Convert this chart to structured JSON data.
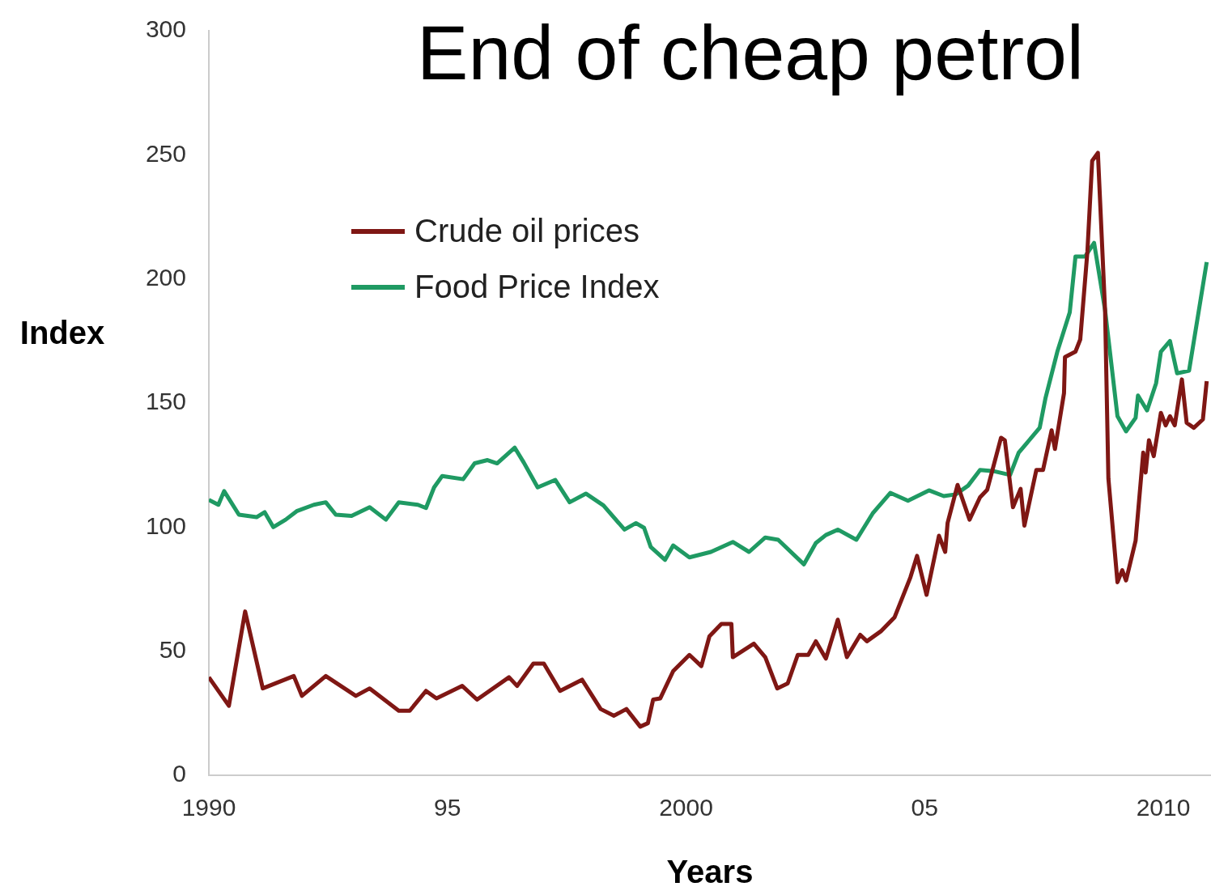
{
  "chart_data": {
    "type": "line",
    "title": "End of cheap petrol",
    "xlabel": "Years",
    "ylabel": "Index",
    "legend": "top left",
    "grid": false,
    "xlim": [
      1990,
      2011
    ],
    "xticks": [
      {
        "value": 1990,
        "label": "1990"
      },
      {
        "value": 1995,
        "label": "95"
      },
      {
        "value": 2000,
        "label": "2000"
      },
      {
        "value": 2005,
        "label": "05"
      },
      {
        "value": 2010,
        "label": "2010"
      }
    ],
    "ylim": [
      0,
      300
    ],
    "yticks": [
      0,
      50,
      100,
      150,
      200,
      250,
      300
    ],
    "series": [
      {
        "name": "Crude oil prices",
        "color": "#7f1714",
        "x": [
          1990.0,
          1990.42,
          1990.76,
          1991.13,
          1991.78,
          1991.95,
          1992.45,
          1993.08,
          1993.37,
          1993.98,
          1994.21,
          1994.55,
          1994.77,
          1995.31,
          1995.62,
          1996.29,
          1996.46,
          1996.8,
          1997.02,
          1997.36,
          1997.82,
          1998.21,
          1998.49,
          1998.75,
          1999.04,
          1999.2,
          1999.31,
          1999.46,
          1999.73,
          2000.07,
          2000.32,
          2000.49,
          2000.74,
          2000.95,
          2000.98,
          2001.42,
          2001.66,
          2001.91,
          2002.13,
          2002.34,
          2002.56,
          2002.72,
          2002.93,
          2003.18,
          2003.37,
          2003.65,
          2003.79,
          2004.08,
          2004.37,
          2004.7,
          2004.84,
          2005.04,
          2005.3,
          2005.43,
          2005.48,
          2005.69,
          2005.94,
          2006.16,
          2006.31,
          2006.6,
          2006.68,
          2006.85,
          2007.01,
          2007.09,
          2007.34,
          2007.48,
          2007.66,
          2007.73,
          2007.92,
          2007.94,
          2008.16,
          2008.26,
          2008.41,
          2008.51,
          2008.63,
          2008.78,
          2008.85,
          2009.04,
          2009.14,
          2009.22,
          2009.42,
          2009.58,
          2009.63,
          2009.7,
          2009.8,
          2009.95,
          2010.05,
          2010.14,
          2010.24,
          2010.39,
          2010.49,
          2010.64,
          2010.83,
          2010.91
        ],
        "values": [
          39.5,
          28,
          66,
          35,
          40,
          32,
          40,
          32,
          35,
          26,
          26,
          34,
          31,
          36,
          30.5,
          39.5,
          36,
          45,
          45,
          34,
          38.5,
          26.7,
          24,
          26.7,
          19.6,
          21,
          30.5,
          31,
          42,
          48.5,
          44,
          56,
          61,
          61,
          47.6,
          53,
          47.6,
          35,
          37,
          48.5,
          48.5,
          54,
          47,
          62.7,
          47.6,
          56.6,
          54,
          58,
          63.7,
          79.7,
          88.4,
          72.7,
          96.5,
          90,
          101.6,
          117,
          103,
          112,
          115,
          136,
          135,
          108,
          115.4,
          100.6,
          123,
          123,
          139,
          131.5,
          154,
          168.5,
          170.7,
          175.6,
          211,
          247.6,
          250.8,
          187.5,
          119.6,
          77.8,
          82.6,
          78.5,
          94.5,
          130,
          122,
          135,
          128.6,
          146,
          141,
          144.7,
          141,
          159.5,
          142,
          140,
          143.4,
          158.8
        ]
      },
      {
        "name": "Food Price Index",
        "color": "#1f9a63",
        "x": [
          1990.0,
          1990.2,
          1990.32,
          1990.63,
          1991.0,
          1991.17,
          1991.35,
          1991.61,
          1991.84,
          1992.2,
          1992.45,
          1992.66,
          1992.99,
          1993.37,
          1993.71,
          1993.98,
          1994.38,
          1994.55,
          1994.72,
          1994.89,
          1995.33,
          1995.57,
          1995.84,
          1996.04,
          1996.41,
          1996.6,
          1996.89,
          1997.26,
          1997.56,
          1997.9,
          1998.27,
          1998.71,
          1998.95,
          1999.12,
          1999.26,
          1999.56,
          1999.73,
          2000.07,
          2000.52,
          2000.98,
          2001.32,
          2001.66,
          2001.93,
          2002.47,
          2002.72,
          2002.93,
          2003.18,
          2003.57,
          2003.91,
          2004.28,
          2004.65,
          2005.09,
          2005.4,
          2005.65,
          2005.91,
          2006.16,
          2006.46,
          2006.79,
          2006.97,
          2007.41,
          2007.53,
          2007.78,
          2008.04,
          2008.16,
          2008.36,
          2008.55,
          2008.78,
          2009.04,
          2009.22,
          2009.42,
          2009.47,
          2009.66,
          2009.85,
          2009.95,
          2010.14,
          2010.29,
          2010.54,
          2010.91
        ],
        "values": [
          111,
          109,
          114.5,
          105,
          104,
          106,
          100,
          103,
          106.4,
          109,
          110,
          105,
          104.5,
          108,
          103,
          110,
          109,
          107.7,
          116,
          120.6,
          119.3,
          125.7,
          127,
          125.7,
          132,
          126,
          116,
          119,
          110,
          113.5,
          108.7,
          99,
          101.6,
          99.7,
          92,
          86.8,
          92.6,
          87.8,
          90,
          94,
          90,
          95.8,
          94.9,
          85,
          93.6,
          96.8,
          99,
          94.9,
          105.5,
          113.8,
          110.6,
          114.8,
          112.5,
          113.2,
          116.7,
          123,
          122.5,
          121,
          130,
          140,
          151.8,
          170.7,
          186.5,
          209,
          209,
          214.5,
          187.5,
          144.7,
          138.6,
          144,
          153,
          147,
          158,
          170.7,
          175,
          162,
          163,
          206.8
        ]
      }
    ]
  }
}
